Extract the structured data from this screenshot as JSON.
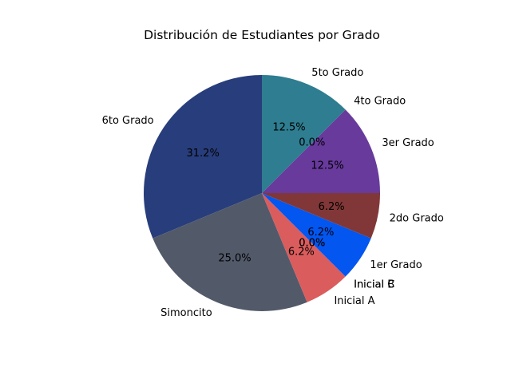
{
  "chart_data": {
    "type": "pie",
    "title": "Distribución de Estudiantes por Grado",
    "start_angle_deg": 90,
    "direction": "counterclockwise",
    "slices": [
      {
        "label": "6to Grado",
        "percent": 31.25,
        "display": "31.2%",
        "color": "#283d7b"
      },
      {
        "label": "Simoncito",
        "percent": 25.0,
        "display": "25.0%",
        "color": "#525a6a"
      },
      {
        "label": "Inicial A",
        "percent": 6.25,
        "display": "6.2%",
        "color": "#db5c5c"
      },
      {
        "label": "Inicial B",
        "percent": 0.0,
        "display": "0.0%",
        "color": "#e07050"
      },
      {
        "label": "Inicial C",
        "percent": 0.0,
        "display": "0.0%",
        "color": "#d06060"
      },
      {
        "label": "1er Grado",
        "percent": 6.25,
        "display": "6.2%",
        "color": "#0356ef"
      },
      {
        "label": "2do Grado",
        "percent": 6.25,
        "display": "6.2%",
        "color": "#813737"
      },
      {
        "label": "3er Grado",
        "percent": 12.5,
        "display": "12.5%",
        "color": "#673a9c"
      },
      {
        "label": "4to Grado",
        "percent": 0.0,
        "display": "0.0%",
        "color": "#4a4a8a"
      },
      {
        "label": "5to Grado",
        "percent": 12.5,
        "display": "12.5%",
        "color": "#2e7d90"
      }
    ]
  }
}
